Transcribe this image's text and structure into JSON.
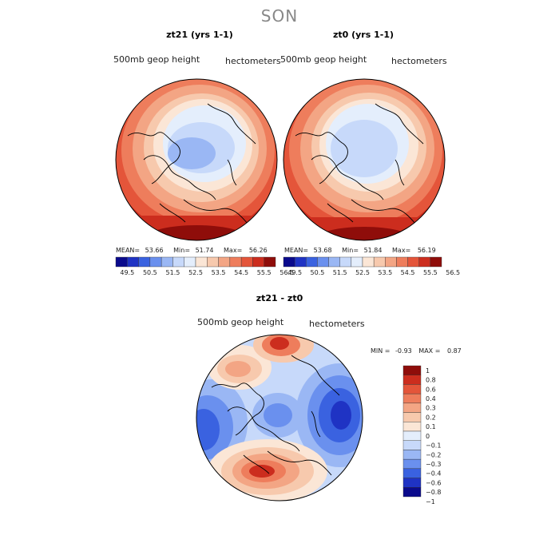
{
  "season_title": "SON",
  "panels": [
    {
      "title": "zt21 (yrs 1-1)",
      "variable": "500mb geop height",
      "units": "hectometers",
      "stats": {
        "mean_label": "MEAN=",
        "mean": "53.66",
        "min_label": "Min=",
        "min": "51.74",
        "max_label": "Max=",
        "max": "56.26"
      },
      "colorbar_labels": [
        "49.5",
        "50.5",
        "51.5",
        "52.5",
        "53.5",
        "54.5",
        "55.5",
        "56.5"
      ]
    },
    {
      "title": "zt0 (yrs 1-1)",
      "variable": "500mb geop height",
      "units": "hectometers",
      "stats": {
        "mean_label": "MEAN=",
        "mean": "53.68",
        "min_label": "Min=",
        "min": "51.84",
        "max_label": "Max=",
        "max": "56.19"
      },
      "colorbar_labels": [
        "49.5",
        "50.5",
        "51.5",
        "52.5",
        "53.5",
        "54.5",
        "55.5",
        "56.5"
      ]
    }
  ],
  "diff_panel": {
    "title": "zt21 - zt0",
    "variable": "500mb geop height",
    "units": "hectometers",
    "stats": {
      "min_label": "MIN =",
      "min": "-0.93",
      "max_label": "MAX =",
      "max": "0.87"
    },
    "legend_labels": [
      "1",
      "0.8",
      "0.6",
      "0.4",
      "0.3",
      "0.2",
      "0.1",
      "0",
      "−0.1",
      "−0.2",
      "−0.3",
      "−0.4",
      "−0.6",
      "−0.8",
      "−1"
    ]
  },
  "colors": {
    "abs_scale": [
      "#0a0a8c",
      "#1f33c4",
      "#3a62e0",
      "#6a90ee",
      "#9ab7f4",
      "#c7d9fa",
      "#e4eefc",
      "#fbe6d6",
      "#f7c9ad",
      "#f3a584",
      "#ee7d5c",
      "#e4553a",
      "#cc2d1e",
      "#8f0d0a"
    ],
    "diff_scale": [
      "#8f0d0a",
      "#cc2d1e",
      "#e4553a",
      "#ee7d5c",
      "#f3a584",
      "#f7c9ad",
      "#fbe6d6",
      "#e4eefc",
      "#c7d9fa",
      "#9ab7f4",
      "#6a90ee",
      "#3a62e0",
      "#1f33c4",
      "#0a0a8c"
    ]
  }
}
